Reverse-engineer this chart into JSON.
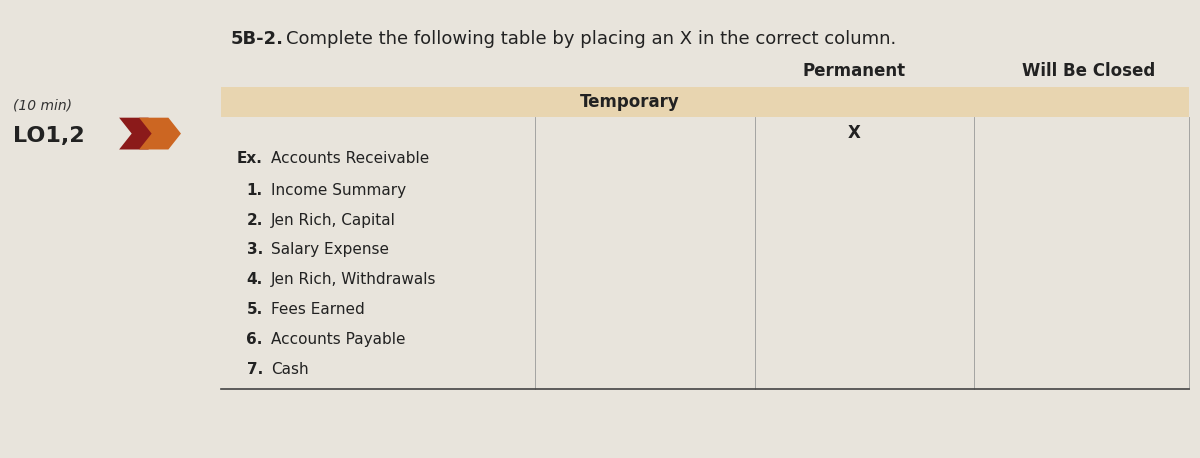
{
  "title_number": "5B-2.",
  "title_text": "Complete the following table by placing an X in the correct column.",
  "left_label_time": "(10 min)",
  "left_label_lo": "LO1,2",
  "col_headers": [
    "Temporary",
    "Permanent",
    "Will Be Closed"
  ],
  "example_label": "Ex.",
  "example_account": "Accounts Receivable",
  "example_x": "X",
  "rows": [
    {
      "num": "1.",
      "account": "Income Summary"
    },
    {
      "num": "2.",
      "account": "Jen Rich, Capital"
    },
    {
      "num": "3.",
      "account": "Salary Expense"
    },
    {
      "num": "4.",
      "account": "Jen Rich, Withdrawals"
    },
    {
      "num": "5.",
      "account": "Fees Earned"
    },
    {
      "num": "6.",
      "account": "Accounts Payable"
    },
    {
      "num": "7.",
      "account": "Cash"
    }
  ],
  "header_bg_color": "#e8d5b0",
  "page_bg_color": "#e8e4dc",
  "arrow_color_dark": "#8b1a1a",
  "arrow_color_light": "#cc6622",
  "title_fontsize": 13,
  "label_fontsize": 11,
  "row_fontsize": 11,
  "header_fontsize": 12,
  "lo_fontsize": 16,
  "time_fontsize": 10
}
